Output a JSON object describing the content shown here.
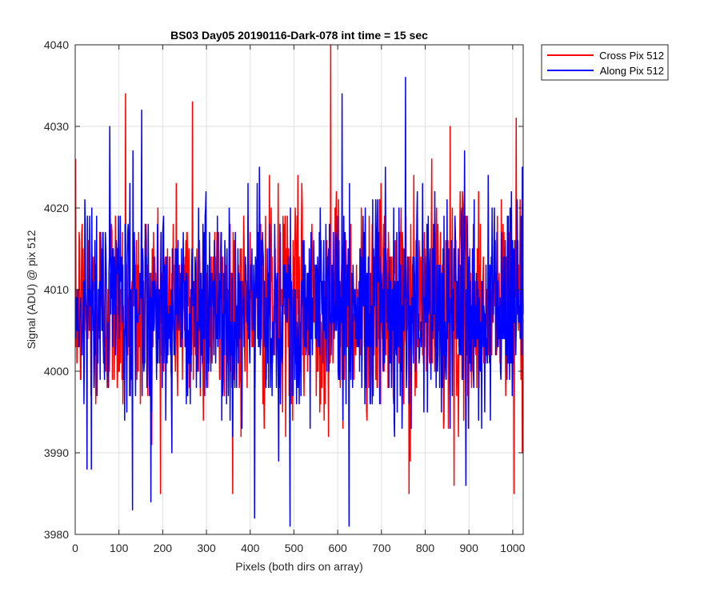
{
  "chart_data": {
    "type": "line",
    "title": "BS03 Day05 20190116-Dark-078 int time = 15 sec",
    "xlabel": "Pixels (both dirs on array)",
    "ylabel": "Signal (ADU) @ pix 512",
    "xlim": [
      0,
      1024
    ],
    "ylim": [
      3980,
      4040
    ],
    "xticks": [
      0,
      100,
      200,
      300,
      400,
      500,
      600,
      700,
      800,
      900,
      1000
    ],
    "yticks": [
      3980,
      3990,
      4000,
      4010,
      4020,
      4030,
      4040
    ],
    "xtick_labels": [
      "0",
      "100",
      "200",
      "300",
      "400",
      "500",
      "600",
      "700",
      "800",
      "900",
      "1000"
    ],
    "ytick_labels": [
      "3980",
      "3990",
      "4000",
      "4010",
      "4020",
      "4030",
      "4040"
    ],
    "grid": true,
    "legend_position": "outside-top-right",
    "series": [
      {
        "name": "Cross Pix 512",
        "color": "#ff0000",
        "x_start": 1,
        "x_step": 1,
        "count": 1024,
        "mean": 4008,
        "std": 6.5,
        "min": 3985,
        "max": 4040,
        "values_sample": [
          {
            "x": 115,
            "y": 4034
          },
          {
            "x": 268,
            "y": 4033
          },
          {
            "x": 584,
            "y": 4040
          },
          {
            "x": 857,
            "y": 4030
          },
          {
            "x": 1008,
            "y": 4031
          },
          {
            "x": 866,
            "y": 3986
          },
          {
            "x": 1003,
            "y": 3985
          },
          {
            "x": 763,
            "y": 3985
          }
        ]
      },
      {
        "name": "Along Pix 512",
        "color": "#0000ff",
        "x_start": 1,
        "x_step": 1,
        "count": 1024,
        "mean": 4008,
        "std": 6.5,
        "min": 3981,
        "max": 4036,
        "values_sample": [
          {
            "x": 152,
            "y": 4032
          },
          {
            "x": 755,
            "y": 4036
          },
          {
            "x": 610,
            "y": 4034
          },
          {
            "x": 491,
            "y": 3981
          },
          {
            "x": 626,
            "y": 3981
          },
          {
            "x": 410,
            "y": 3982
          },
          {
            "x": 131,
            "y": 3983
          },
          {
            "x": 893,
            "y": 3986
          }
        ]
      }
    ]
  }
}
